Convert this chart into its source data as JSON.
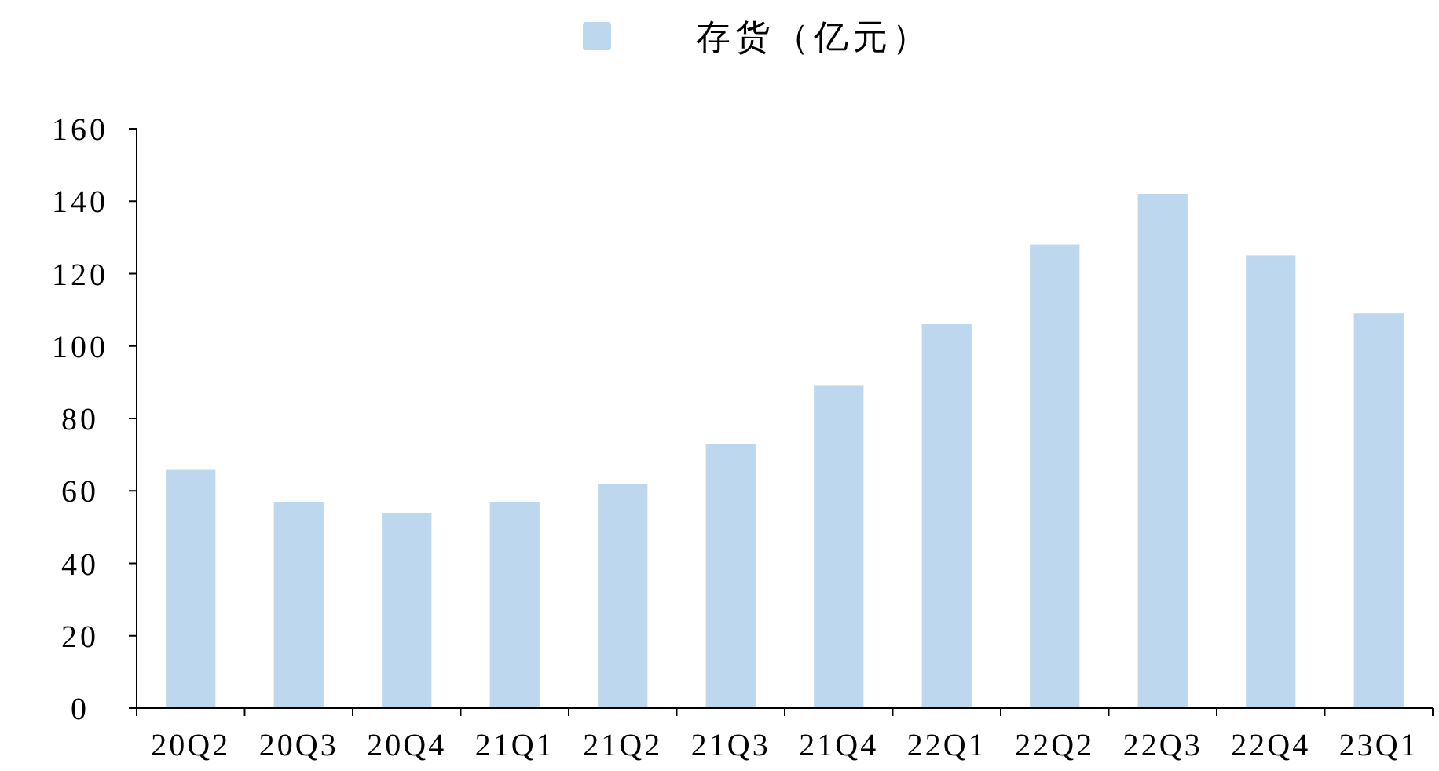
{
  "chart_data": {
    "type": "bar",
    "categories": [
      "20Q2",
      "20Q3",
      "20Q4",
      "21Q1",
      "21Q2",
      "21Q3",
      "21Q4",
      "22Q1",
      "22Q2",
      "22Q3",
      "22Q4",
      "23Q1"
    ],
    "series": [
      {
        "name": "存货（亿元）",
        "color": "#bdd7ee",
        "values": [
          66,
          57,
          54,
          57,
          62,
          73,
          89,
          106,
          128,
          142,
          125,
          109
        ]
      }
    ],
    "ylim": [
      0,
      160
    ],
    "yticks": [
      0,
      20,
      40,
      60,
      80,
      100,
      120,
      140,
      160
    ],
    "legend": "top",
    "grid": false
  }
}
